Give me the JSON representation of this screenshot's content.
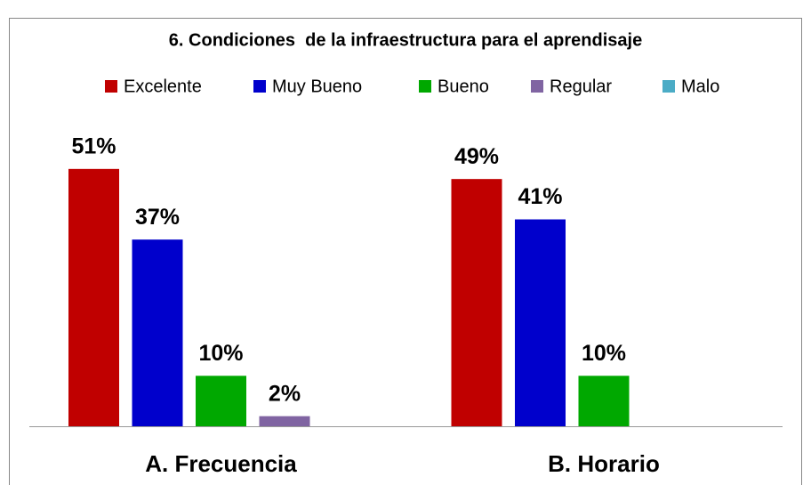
{
  "chart_data": {
    "type": "bar",
    "title": "6. Condiciones  de la infraestructura para el aprendisaje",
    "categories": [
      "A. Frecuencia",
      "B. Horario"
    ],
    "series": [
      {
        "name": "Excelente",
        "color": "#c00000",
        "values": [
          51,
          49
        ],
        "value_labels": [
          "51%",
          "49%"
        ]
      },
      {
        "name": "Muy Bueno",
        "color": "#0000cc",
        "values": [
          37,
          41
        ],
        "value_labels": [
          "37%",
          "41%"
        ]
      },
      {
        "name": "Bueno",
        "color": "#00a800",
        "values": [
          10,
          10
        ],
        "value_labels": [
          "10%",
          "10%"
        ]
      },
      {
        "name": "Regular",
        "color": "#8064a2",
        "values": [
          2,
          null
        ],
        "value_labels": [
          "2%",
          null
        ]
      },
      {
        "name": "Malo",
        "color": "#4bacc6",
        "values": [
          null,
          null
        ],
        "value_labels": [
          null,
          null
        ]
      }
    ],
    "legend": "top"
  }
}
